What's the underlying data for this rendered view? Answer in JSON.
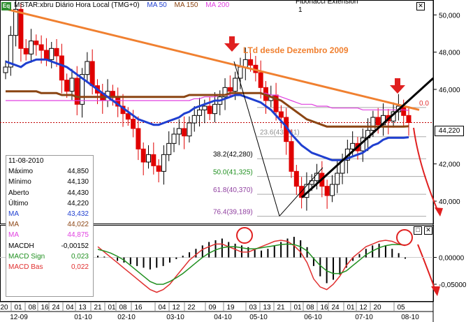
{
  "header": {
    "symbol_icon": "Eq",
    "title": "MSTAR:xbru Diário Hora Local (TMG+0)",
    "ma50": "MA 50",
    "ma150": "MA 150",
    "ma200": "MA 200",
    "fibonacci": "Fibonacci Extension",
    "fibonacci_sub": "1"
  },
  "colors": {
    "ma50": "#1f3fd0",
    "ma150": "#8b4513",
    "ma200": "#e040e0",
    "trend": "#f08030",
    "candle_up": "#ffffff",
    "candle_down": "#e00000",
    "macd_signal": "#209020",
    "macd_base": "#e03030",
    "arrow": "#e02020"
  },
  "annotation": "LTd desde Dezembro 2009",
  "price_label": "44,220",
  "data_window": {
    "date": "11-08-2010",
    "rows": [
      {
        "k": "Máximo",
        "v": "44,850",
        "color": "#000000"
      },
      {
        "k": "Mínimo",
        "v": "44,130",
        "color": "#000000"
      },
      {
        "k": "Aberto",
        "v": "44,430",
        "color": "#000000"
      },
      {
        "k": "Último",
        "v": "44,220",
        "color": "#000000"
      },
      {
        "k": "MA",
        "v": "43,432",
        "color": "#1f3fd0"
      },
      {
        "k": "MA",
        "v": "44,022",
        "color": "#8b4513"
      },
      {
        "k": "MA",
        "v": "44,875",
        "color": "#e040e0"
      },
      {
        "k": "MACDH",
        "v": "-0,00152",
        "color": "#000000"
      },
      {
        "k": "MACD Sign",
        "v": "0,023",
        "color": "#209020"
      },
      {
        "k": "MACD Bas",
        "v": "0,022",
        "color": "#e03030"
      }
    ]
  },
  "chart_data": {
    "type": "candlestick",
    "price_axis": {
      "ticks": [
        "50,000",
        "48,000",
        "46,000",
        "42,000",
        "40,000"
      ],
      "ylim": [
        38.8,
        50.8
      ]
    },
    "macd_axis": {
      "ticks": [
        "0,00000",
        "-0,05000"
      ],
      "ylim": [
        -0.08,
        0.045
      ]
    },
    "fib_levels": [
      {
        "label": "0.0",
        "value": 45.03
      },
      {
        "label": "23.6(43,461)",
        "value": 43.461
      },
      {
        "label": "38.2(42,280)",
        "value": 42.28
      },
      {
        "label": "50.0(41,325)",
        "value": 41.325
      },
      {
        "label": "61.8(40,370)",
        "value": 40.37
      },
      {
        "label": "76.4(39,189)",
        "value": 39.189
      }
    ],
    "x_day_labels": [
      "20",
      "01",
      "08",
      "16",
      "24",
      "04",
      "13",
      "21",
      "01",
      "08",
      "16",
      "04",
      "12",
      "22",
      "09",
      "19",
      "03",
      "13",
      "21",
      "01",
      "08",
      "16",
      "24",
      "01",
      "12",
      "20",
      "05"
    ],
    "x_month_labels": [
      "12-09",
      "01-10",
      "02-10",
      "03-10",
      "04-10",
      "05-10",
      "06-10",
      "07-10",
      "08-10"
    ],
    "close": [
      47.2,
      48.9,
      50.3,
      48.2,
      47.9,
      48.6,
      48.4,
      48.1,
      47.6,
      48.2,
      47.8,
      46.5,
      45.9,
      46.6,
      45.2,
      46.8,
      47.5,
      46.2,
      45.8,
      45.4,
      45.9,
      45.6,
      45.1,
      44.7,
      44.4,
      43.9,
      42.8,
      42.1,
      42.5,
      41.9,
      41.6,
      42.5,
      43.1,
      43.6,
      43.9,
      43.5,
      44.2,
      44.6,
      44.9,
      45.1,
      44.7,
      45.2,
      45.6,
      46.1,
      45.9,
      46.6,
      47.2,
      47.6,
      47.3,
      46.9,
      46.1,
      45.4,
      45.7,
      44.8,
      44.5,
      43.2,
      41.6,
      40.8,
      40.2,
      40.9,
      41.1,
      41.5,
      40.8,
      40.3,
      40.9,
      41.5,
      42.2,
      42.8,
      43.1,
      42.7,
      43.4,
      43.8,
      44.5,
      44.1,
      44.6,
      44.3,
      44.8,
      45.1,
      44.6,
      44.22
    ],
    "ma50": [
      47.5,
      47.4,
      47.3,
      47.2,
      47.4,
      47.5,
      47.6,
      47.6,
      47.6,
      47.5,
      47.4,
      47.3,
      47.2,
      47.0,
      46.8,
      46.6,
      46.4,
      46.2,
      46.0,
      45.8,
      45.6,
      45.4,
      45.2,
      45.0,
      44.8,
      44.6,
      44.4,
      44.3,
      44.2,
      44.1,
      44.1,
      44.2,
      44.3,
      44.4,
      44.5,
      44.7,
      44.8,
      45.0,
      45.1,
      45.2,
      45.3,
      45.4,
      45.4,
      45.5,
      45.6,
      45.7,
      45.7,
      45.6,
      45.5,
      45.4,
      45.3,
      45.1,
      44.9,
      44.6,
      44.3,
      44.0,
      43.6,
      43.3,
      43.0,
      42.8,
      42.6,
      42.5,
      42.4,
      42.3,
      42.2,
      42.2,
      42.2,
      42.3,
      42.4,
      42.5,
      42.6,
      42.8,
      43.0,
      43.1,
      43.3,
      43.4,
      43.4,
      43.4,
      43.4,
      43.432
    ],
    "ma150": [
      45.9,
      45.9,
      45.9,
      45.9,
      45.9,
      45.9,
      45.9,
      45.8,
      45.8,
      45.8,
      45.8,
      45.7,
      45.7,
      45.7,
      45.6,
      45.6,
      45.6,
      45.6,
      45.6,
      45.6,
      45.6,
      45.6,
      45.6,
      45.6,
      45.6,
      45.6,
      45.6,
      45.6,
      45.6,
      45.6,
      45.6,
      45.6,
      45.6,
      45.6,
      45.6,
      45.6,
      45.7,
      45.7,
      45.7,
      45.7,
      45.7,
      45.7,
      45.7,
      45.7,
      45.8,
      45.8,
      45.8,
      45.8,
      45.8,
      45.8,
      45.8,
      45.7,
      45.6,
      45.5,
      45.4,
      45.2,
      45.0,
      44.8,
      44.6,
      44.4,
      44.3,
      44.2,
      44.1,
      44.0,
      44.0,
      44.0,
      44.0,
      44.0,
      44.0,
      44.0,
      44.0,
      44.0,
      44.0,
      44.0,
      44.0,
      44.0,
      44.0,
      44.0,
      44.0,
      44.022
    ],
    "ma200": [
      45.4,
      45.4,
      45.4,
      45.4,
      45.4,
      45.4,
      45.4,
      45.4,
      45.4,
      45.4,
      45.4,
      45.4,
      45.4,
      45.4,
      45.4,
      45.4,
      45.4,
      45.4,
      45.4,
      45.4,
      45.4,
      45.4,
      45.4,
      45.4,
      45.4,
      45.4,
      45.4,
      45.4,
      45.4,
      45.4,
      45.4,
      45.4,
      45.4,
      45.4,
      45.4,
      45.4,
      45.4,
      45.5,
      45.5,
      45.6,
      45.6,
      45.6,
      45.7,
      45.7,
      45.7,
      45.7,
      45.8,
      45.8,
      45.8,
      45.8,
      45.8,
      45.8,
      45.7,
      45.7,
      45.6,
      45.5,
      45.4,
      45.3,
      45.2,
      45.2,
      45.2,
      45.1,
      45.1,
      45.1,
      45.0,
      45.0,
      45.0,
      45.0,
      45.0,
      45.0,
      44.9,
      44.9,
      44.9,
      44.9,
      44.9,
      44.9,
      44.9,
      44.9,
      44.9,
      44.875
    ],
    "macd_base": [
      0.02,
      0.01,
      0.0,
      -0.01,
      -0.02,
      -0.03,
      -0.04,
      -0.05,
      -0.06,
      -0.065,
      -0.06,
      -0.05,
      -0.035,
      -0.02,
      -0.005,
      0.005,
      0.015,
      0.02,
      0.025,
      0.025,
      0.02,
      0.015,
      0.01,
      0.01,
      0.015,
      0.02,
      0.025,
      0.03,
      0.032,
      0.03,
      0.022,
      0.01,
      -0.01,
      -0.04,
      -0.055,
      -0.06,
      -0.05,
      -0.035,
      -0.015,
      0.0,
      0.01,
      0.02,
      0.025,
      0.03,
      0.032,
      0.03,
      0.025,
      0.022
    ],
    "macd_signal": [
      0.015,
      0.012,
      0.008,
      0.002,
      -0.005,
      -0.015,
      -0.025,
      -0.035,
      -0.045,
      -0.05,
      -0.05,
      -0.045,
      -0.038,
      -0.03,
      -0.02,
      -0.01,
      0.0,
      0.008,
      0.014,
      0.018,
      0.02,
      0.02,
      0.018,
      0.016,
      0.016,
      0.018,
      0.02,
      0.022,
      0.024,
      0.025,
      0.024,
      0.02,
      0.012,
      -0.002,
      -0.015,
      -0.025,
      -0.03,
      -0.03,
      -0.025,
      -0.015,
      -0.005,
      0.005,
      0.012,
      0.018,
      0.022,
      0.024,
      0.024,
      0.023
    ],
    "macd_hist": [
      0.002,
      0.001,
      0.0,
      -0.004,
      -0.006,
      -0.008,
      -0.01,
      -0.012,
      -0.014,
      -0.012,
      -0.01,
      -0.006,
      -0.002,
      0.002,
      0.006,
      0.01,
      0.014,
      0.018,
      0.02,
      0.022,
      0.018,
      0.016,
      0.014,
      0.012,
      0.01,
      0.008,
      0.01,
      0.014,
      0.018,
      0.022,
      0.024,
      0.02,
      0.012,
      -0.01,
      -0.022,
      -0.03,
      -0.026,
      -0.02,
      -0.012,
      -0.004,
      0.004,
      0.01,
      0.014,
      0.016,
      0.014,
      0.01,
      0.005,
      -0.00152
    ]
  }
}
